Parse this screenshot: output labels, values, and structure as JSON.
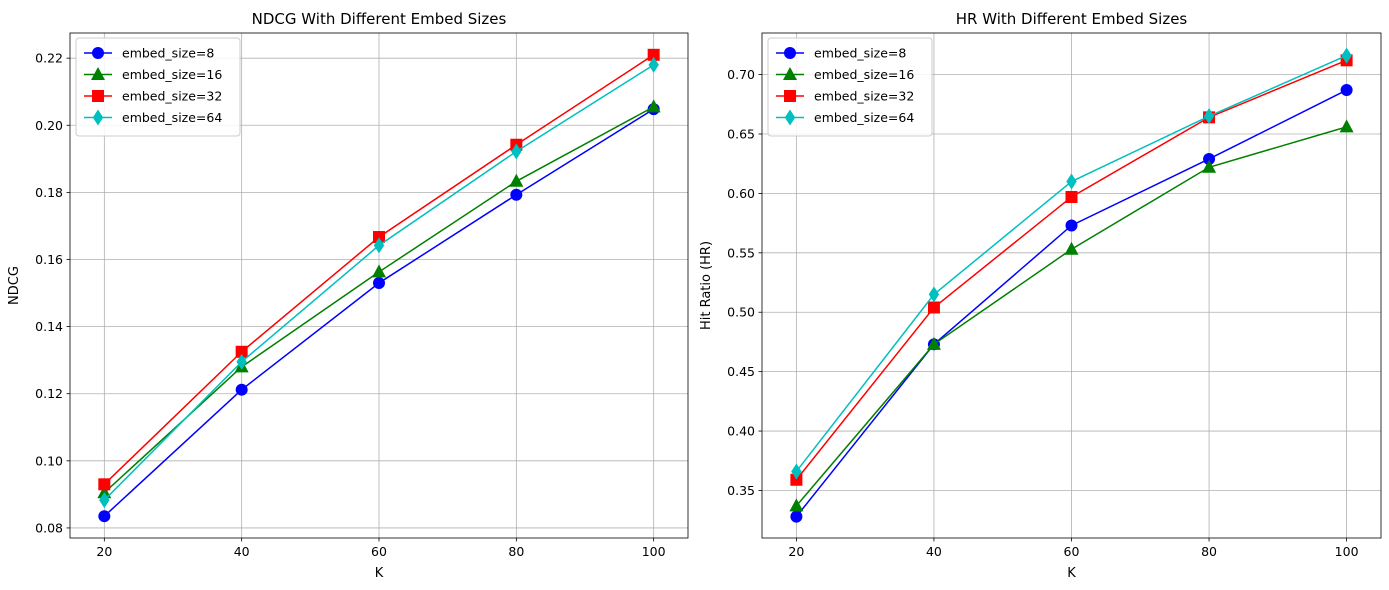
{
  "chart_data": [
    {
      "type": "line",
      "title": "NDCG With Different Embed Sizes",
      "xlabel": "K",
      "ylabel": "NDCG",
      "x": [
        20,
        40,
        60,
        80,
        100
      ],
      "xticks": [
        "20",
        "40",
        "60",
        "80",
        "100"
      ],
      "xlim": [
        15,
        105
      ],
      "ylim": [
        0.077,
        0.2275
      ],
      "yticks": [
        0.08,
        0.1,
        0.12,
        0.14,
        0.16,
        0.18,
        0.2,
        0.22
      ],
      "ytick_labels": [
        "0.08",
        "0.10",
        "0.12",
        "0.14",
        "0.16",
        "0.18",
        "0.20",
        "0.22"
      ],
      "grid": true,
      "legend_position": "upper left",
      "series": [
        {
          "name": "embed_size=8",
          "color": "#0000ff",
          "marker": "circle",
          "values": [
            0.0835,
            0.1212,
            0.153,
            0.1793,
            0.2048
          ]
        },
        {
          "name": "embed_size=16",
          "color": "#008000",
          "marker": "triangle",
          "values": [
            0.0905,
            0.128,
            0.1563,
            0.1833,
            0.2055
          ]
        },
        {
          "name": "embed_size=32",
          "color": "#ff0000",
          "marker": "square",
          "values": [
            0.093,
            0.1325,
            0.1667,
            0.1942,
            0.221
          ]
        },
        {
          "name": "embed_size=64",
          "color": "#00bfbf",
          "marker": "diamond",
          "values": [
            0.0883,
            0.1295,
            0.1642,
            0.1922,
            0.218
          ]
        }
      ]
    },
    {
      "type": "line",
      "title": "HR With Different Embed Sizes",
      "xlabel": "K",
      "ylabel": "Hit Ratio (HR)",
      "x": [
        20,
        40,
        60,
        80,
        100
      ],
      "xticks": [
        "20",
        "40",
        "60",
        "80",
        "100"
      ],
      "xlim": [
        15,
        105
      ],
      "ylim": [
        0.31,
        0.735
      ],
      "yticks": [
        0.35,
        0.4,
        0.45,
        0.5,
        0.55,
        0.6,
        0.65,
        0.7
      ],
      "ytick_labels": [
        "0.35",
        "0.40",
        "0.45",
        "0.50",
        "0.55",
        "0.60",
        "0.65",
        "0.70"
      ],
      "grid": true,
      "legend_position": "upper left",
      "series": [
        {
          "name": "embed_size=8",
          "color": "#0000ff",
          "marker": "circle",
          "values": [
            0.328,
            0.473,
            0.573,
            0.629,
            0.687
          ]
        },
        {
          "name": "embed_size=16",
          "color": "#008000",
          "marker": "triangle",
          "values": [
            0.337,
            0.473,
            0.553,
            0.622,
            0.656
          ]
        },
        {
          "name": "embed_size=32",
          "color": "#ff0000",
          "marker": "square",
          "values": [
            0.359,
            0.504,
            0.597,
            0.664,
            0.712
          ]
        },
        {
          "name": "embed_size=64",
          "color": "#00bfbf",
          "marker": "diamond",
          "values": [
            0.366,
            0.515,
            0.61,
            0.665,
            0.716
          ]
        }
      ]
    }
  ]
}
